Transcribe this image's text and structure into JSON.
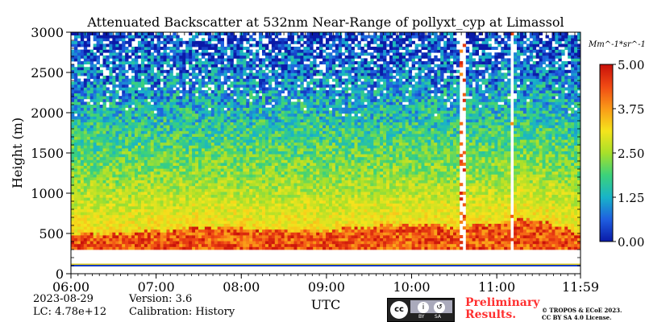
{
  "chart_data": {
    "type": "heatmap",
    "title": "Attenuated Backscatter at 532nm Near-Range of pollyxt_cyp at Limassol",
    "xlabel": "UTC",
    "ylabel": "Height (m)",
    "x_ticks": [
      "06:00",
      "07:00",
      "08:00",
      "09:00",
      "10:00",
      "11:00",
      "11:59"
    ],
    "y_ticks": [
      "0",
      "500",
      "1000",
      "1500",
      "2000",
      "2500",
      "3000"
    ],
    "x_range_hours": [
      6.0,
      11.983
    ],
    "ylim": [
      0,
      3000
    ],
    "colorbar": {
      "unit": "Mm^-1*sr^-1",
      "ticks": [
        "0.00",
        "1.25",
        "2.50",
        "3.75",
        "5.00"
      ],
      "range": [
        0,
        5
      ],
      "colormap": [
        "#0a1aa8",
        "#1f5fe0",
        "#18b4c8",
        "#3cd27a",
        "#a8e02a",
        "#f5e41c",
        "#fa9a18",
        "#f04a14",
        "#c8100a"
      ]
    },
    "layers": [
      {
        "name": "near-surface band",
        "bottom_m": 90,
        "top_m": 110,
        "value": 0.3
      },
      {
        "name": "aerosol boundary layer top",
        "profile": [
          {
            "t": 6.0,
            "top_m": 460
          },
          {
            "t": 6.5,
            "top_m": 470
          },
          {
            "t": 7.0,
            "top_m": 520
          },
          {
            "t": 7.5,
            "top_m": 560
          },
          {
            "t": 8.0,
            "top_m": 540
          },
          {
            "t": 8.5,
            "top_m": 520
          },
          {
            "t": 9.0,
            "top_m": 520
          },
          {
            "t": 9.5,
            "top_m": 560
          },
          {
            "t": 10.0,
            "top_m": 600
          },
          {
            "t": 10.5,
            "top_m": 560
          },
          {
            "t": 11.0,
            "top_m": 620
          },
          {
            "t": 11.25,
            "top_m": 680
          },
          {
            "t": 11.6,
            "top_m": 620
          },
          {
            "t": 11.983,
            "top_m": 480
          }
        ]
      },
      {
        "name": "no-signal gaps",
        "intervals_hours": [
          [
            10.55,
            10.65
          ],
          [
            11.15,
            11.18
          ]
        ]
      }
    ]
  },
  "footer": {
    "date": "2023-08-29",
    "lc": "LC: 4.78e+12",
    "version": "Version: 3.6",
    "calibration": "Calibration: History",
    "preliminary": "Preliminary Results.",
    "copyright_1": "© TROPOS & ECoE 2023.",
    "copyright_2": "CC BY SA 4.0 License."
  }
}
